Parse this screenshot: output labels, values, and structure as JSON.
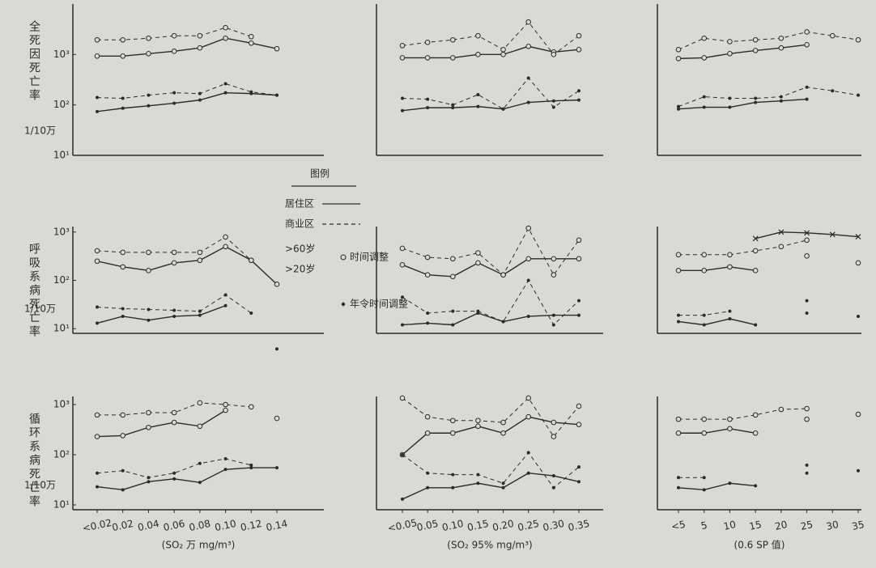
{
  "row_labels": [
    {
      "title": "全死因死亡率",
      "unit": "1/10万"
    },
    {
      "title": "呼吸系病死亡率",
      "unit": "1/10万"
    },
    {
      "title": "循环系病死亡率",
      "unit": "1/10万"
    }
  ],
  "legend": {
    "title": "图例",
    "items": [
      {
        "label": "居住区",
        "style": "solid"
      },
      {
        "label": "商业区",
        "style": "dashed"
      }
    ],
    "groups": [
      ">60岁",
      ">20岁"
    ],
    "markers": [
      {
        "label": "时间调整",
        "marker": "open"
      },
      {
        "label": "年令时间调整",
        "marker": "filled"
      }
    ]
  },
  "chart_data": [
    {
      "type": "line",
      "color": "#2b2b2b",
      "log_scale": true,
      "categories": [
        "<0.02",
        "0.02",
        "0.04",
        "0.06",
        "0.08",
        "0.10",
        "0.12",
        "0.14"
      ],
      "xlabel": "(SO₂ 万 mg/m³)",
      "panels": [
        {
          "ylim": [
            10,
            10000
          ],
          "yticks": [
            {
              "value": 1000,
              "label": "10³"
            },
            {
              "value": 100,
              "label": "10²"
            },
            {
              "value": 10,
              "label": "10¹"
            }
          ],
          "series": [
            {
              "style": "solid",
              "marker": "open",
              "values": [
                930,
                930,
                1040,
                1160,
                1350,
                2100,
                1680,
                1300
              ]
            },
            {
              "style": "dashed",
              "marker": "open",
              "values": [
                1950,
                1950,
                2100,
                2350,
                2350,
                3400,
                2260,
                null
              ]
            },
            {
              "style": "solid",
              "marker": "filled",
              "values": [
                74,
                86,
                96,
                108,
                125,
                174,
                168,
                156
              ]
            },
            {
              "style": "dashed",
              "marker": "filled",
              "values": [
                140,
                135,
                156,
                174,
                168,
                263,
                181,
                156
              ]
            }
          ]
        },
        {
          "ylim": [
            8,
            1300
          ],
          "yticks": [
            {
              "value": 1000,
              "label": "10³"
            },
            {
              "value": 100,
              "label": "10²"
            },
            {
              "value": 10,
              "label": "10¹"
            }
          ],
          "series": [
            {
              "style": "solid",
              "marker": "open",
              "values": [
                250,
                190,
                160,
                230,
                260,
                500,
                260,
                83
              ]
            },
            {
              "style": "dashed",
              "marker": "open",
              "values": [
                410,
                380,
                380,
                380,
                380,
                790,
                260,
                null
              ]
            },
            {
              "style": "solid",
              "marker": "filled",
              "values": [
                13,
                18,
                15,
                18,
                19,
                30,
                null,
                3.8
              ]
            },
            {
              "style": "dashed",
              "marker": "filled",
              "values": [
                28,
                26,
                25,
                24,
                23,
                50,
                21,
                null
              ]
            }
          ]
        },
        {
          "ylim": [
            8,
            1450
          ],
          "yticks": [
            {
              "value": 1000,
              "label": "10³"
            },
            {
              "value": 100,
              "label": "10²"
            },
            {
              "value": 10,
              "label": "10¹"
            }
          ],
          "series": [
            {
              "style": "solid",
              "marker": "open",
              "values": [
                230,
                240,
                350,
                440,
                370,
                770,
                null,
                530
              ]
            },
            {
              "style": "dashed",
              "marker": "open",
              "values": [
                620,
                620,
                690,
                690,
                1080,
                1000,
                900,
                null
              ]
            },
            {
              "style": "solid",
              "marker": "filled",
              "values": [
                23,
                20,
                29,
                33,
                28,
                51,
                55,
                55
              ]
            },
            {
              "style": "dashed",
              "marker": "filled",
              "values": [
                43,
                48,
                35,
                43,
                67,
                83,
                62,
                null
              ]
            }
          ]
        }
      ]
    },
    {
      "type": "line",
      "color": "#2b2b2b",
      "log_scale": true,
      "categories": [
        "<0.05",
        "0.05",
        "0.10",
        "0.15",
        "0.20",
        "0.25",
        "0.30",
        "0.35"
      ],
      "xlabel": "(SO₂ 95% mg/m³)",
      "panels": [
        {
          "ylim": [
            10,
            10000
          ],
          "series": [
            {
              "style": "solid",
              "marker": "open",
              "values": [
                860,
                860,
                860,
                1000,
                1000,
                1450,
                1120,
                1250
              ]
            },
            {
              "style": "dashed",
              "marker": "open",
              "values": [
                1500,
                1740,
                1950,
                2350,
                1250,
                4400,
                1000,
                2350
              ]
            },
            {
              "style": "solid",
              "marker": "filled",
              "values": [
                77,
                88,
                88,
                93,
                83,
                112,
                120,
                125
              ]
            },
            {
              "style": "dashed",
              "marker": "filled",
              "values": [
                135,
                130,
                100,
                160,
                83,
                340,
                90,
                190
              ]
            }
          ]
        },
        {
          "ylim": [
            8,
            1300
          ],
          "series": [
            {
              "style": "solid",
              "marker": "open",
              "values": [
                210,
                130,
                120,
                230,
                130,
                280,
                280,
                280
              ]
            },
            {
              "style": "dashed",
              "marker": "open",
              "values": [
                460,
                300,
                280,
                370,
                130,
                1200,
                130,
                680
              ]
            },
            {
              "style": "solid",
              "marker": "filled",
              "values": [
                12,
                13,
                12,
                21,
                14,
                18,
                19,
                19
              ]
            },
            {
              "style": "dashed",
              "marker": "filled",
              "values": [
                45,
                21,
                23,
                23,
                14,
                100,
                12,
                38
              ]
            }
          ]
        },
        {
          "ylim": [
            8,
            1450
          ],
          "series": [
            {
              "style": "solid",
              "marker": "open",
              "values": [
                100,
                270,
                270,
                370,
                270,
                570,
                440,
                400
              ]
            },
            {
              "style": "dashed",
              "marker": "open",
              "values": [
                1350,
                570,
                480,
                480,
                440,
                1350,
                230,
                930
              ]
            },
            {
              "style": "solid",
              "marker": "filled",
              "values": [
                13,
                22,
                22,
                27,
                22,
                43,
                38,
                29
              ]
            },
            {
              "style": "dashed",
              "marker": "filled",
              "values": [
                100,
                43,
                40,
                40,
                27,
                110,
                22,
                57
              ]
            }
          ]
        }
      ]
    },
    {
      "type": "line",
      "color": "#2b2b2b",
      "log_scale": true,
      "categories": [
        "<5",
        "5",
        "10",
        "15",
        "20",
        "25",
        "30",
        "35"
      ],
      "xlabel": "(0.6 SP 值)",
      "panels": [
        {
          "ylim": [
            10,
            10000
          ],
          "series": [
            {
              "style": "solid",
              "marker": "open",
              "values": [
                830,
                860,
                1040,
                1200,
                1350,
                1560,
                null,
                null
              ]
            },
            {
              "style": "dashed",
              "marker": "open",
              "values": [
                1250,
                2100,
                1800,
                1950,
                2100,
                2800,
                2350,
                1950
              ]
            },
            {
              "style": "solid",
              "marker": "filled",
              "values": [
                83,
                90,
                90,
                112,
                120,
                130,
                null,
                null
              ]
            },
            {
              "style": "dashed",
              "marker": "filled",
              "values": [
                93,
                145,
                135,
                135,
                145,
                225,
                190,
                156
              ]
            }
          ]
        },
        {
          "ylim": [
            8,
            1300
          ],
          "series": [
            {
              "style": "solid",
              "marker": "open",
              "values": [
                160,
                160,
                190,
                160,
                null,
                320,
                null,
                null
              ]
            },
            {
              "style": "dashed",
              "marker": "open",
              "values": [
                340,
                340,
                340,
                410,
                500,
                680,
                null,
                230
              ]
            },
            {
              "style": "solid",
              "marker": "filled",
              "values": [
                14,
                12,
                16,
                12,
                null,
                21,
                null,
                null
              ]
            },
            {
              "style": "dashed",
              "marker": "filled",
              "values": [
                19,
                19,
                23,
                null,
                null,
                38,
                null,
                18
              ]
            },
            {
              "style": "solid",
              "marker": "x",
              "values": [
                null,
                null,
                null,
                735,
                1000,
                960,
                890,
                800
              ]
            }
          ]
        },
        {
          "ylim": [
            8,
            1450
          ],
          "series": [
            {
              "style": "solid",
              "marker": "open",
              "values": [
                270,
                270,
                330,
                270,
                null,
                510,
                null,
                null
              ]
            },
            {
              "style": "dashed",
              "marker": "open",
              "values": [
                510,
                510,
                510,
                620,
                800,
                830,
                null,
                640
              ]
            },
            {
              "style": "solid",
              "marker": "filled",
              "values": [
                22,
                20,
                27,
                24,
                null,
                43,
                null,
                null
              ]
            },
            {
              "style": "dashed",
              "marker": "filled",
              "values": [
                35,
                35,
                null,
                null,
                null,
                62,
                null,
                48
              ]
            }
          ]
        }
      ]
    }
  ]
}
